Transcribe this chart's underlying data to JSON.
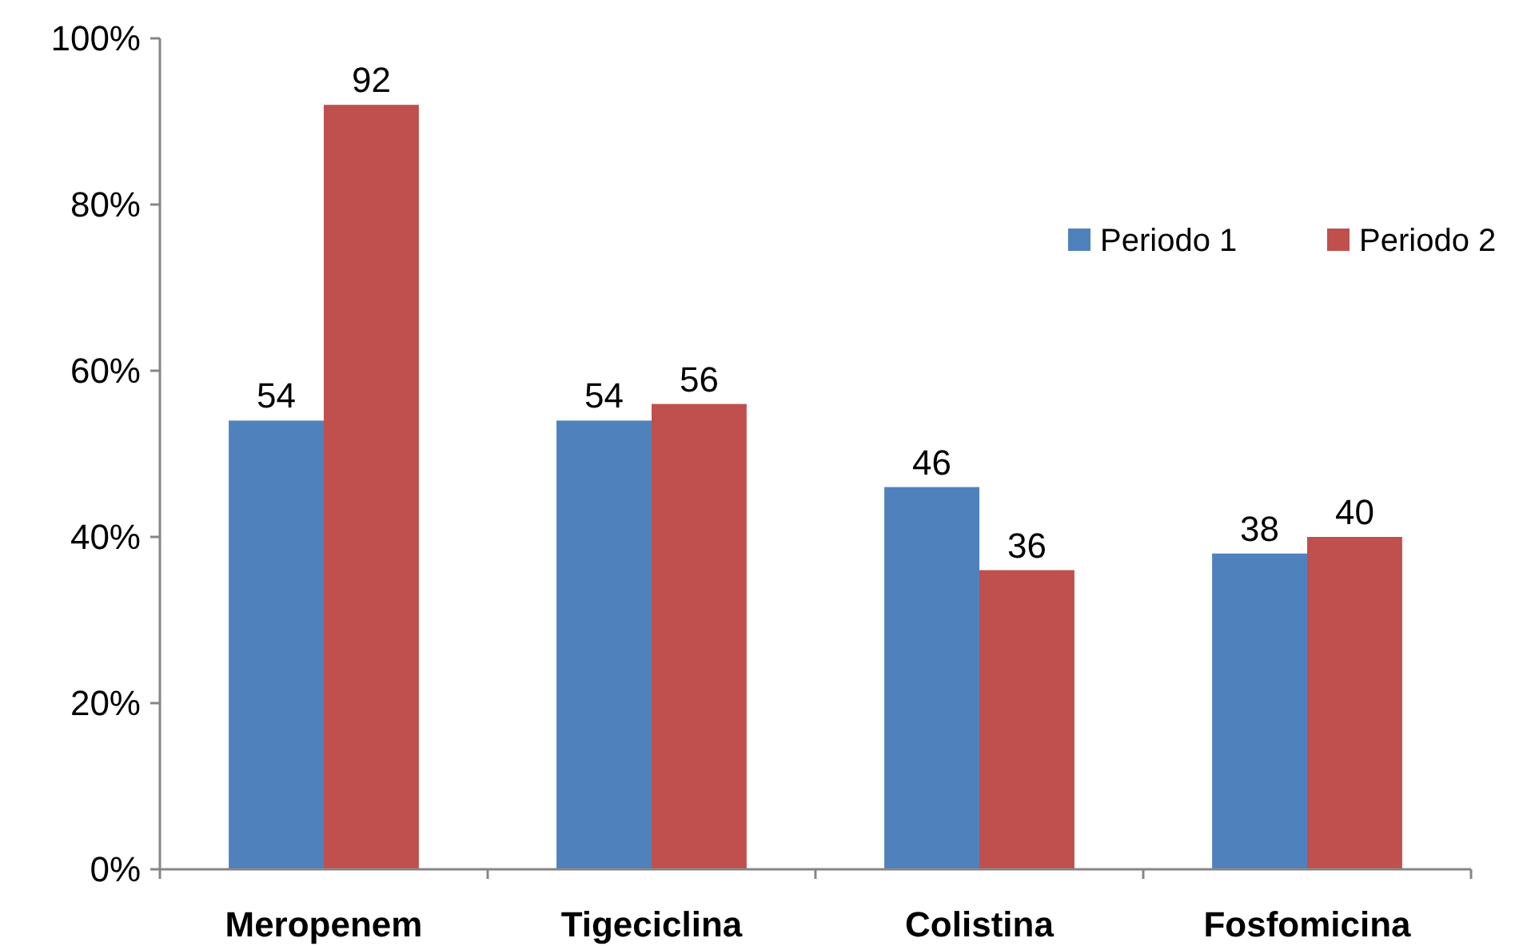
{
  "chart_data": {
    "type": "bar",
    "categories": [
      "Meropenem",
      "Tigeciclina",
      "Colistina",
      "Fosfomicina"
    ],
    "series": [
      {
        "name": "Periodo 1",
        "color": "#4f81bd",
        "values": [
          54,
          54,
          46,
          38
        ]
      },
      {
        "name": "Periodo 2",
        "color": "#c0504d",
        "values": [
          92,
          56,
          36,
          40
        ]
      }
    ],
    "ylim": [
      0,
      100
    ],
    "yticks": [
      {
        "value": 0,
        "label": "0%"
      },
      {
        "value": 20,
        "label": "20%"
      },
      {
        "value": 40,
        "label": "40%"
      },
      {
        "value": 60,
        "label": "60%"
      },
      {
        "value": 80,
        "label": "80%"
      },
      {
        "value": 100,
        "label": "100%"
      }
    ],
    "data_labels": true,
    "legend": "top right",
    "grid": false
  }
}
